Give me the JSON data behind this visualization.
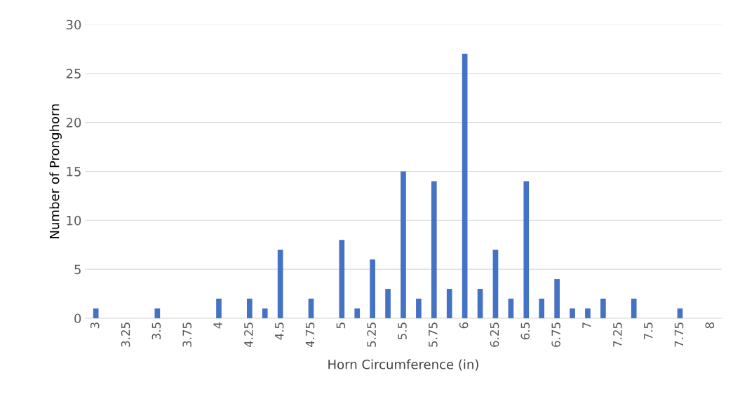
{
  "chart_data": {
    "type": "bar",
    "xlabel": "Horn Circumference (in)",
    "ylabel": "Number of Pronghorn",
    "categories": [
      "3",
      null,
      "3.25",
      null,
      "3.5",
      null,
      "3.75",
      null,
      "4",
      null,
      "4.25",
      null,
      "4.5",
      null,
      "4.75",
      null,
      "5",
      null,
      "5.25",
      null,
      "5.5",
      null,
      "5.75",
      null,
      "6",
      null,
      "6.25",
      null,
      "6.5",
      null,
      "6.75",
      null,
      "7",
      null,
      "7.25",
      null,
      "7.5",
      null,
      "7.75",
      null,
      "8"
    ],
    "values": [
      1,
      0,
      0,
      0,
      1,
      0,
      0,
      0,
      2,
      0,
      2,
      1,
      7,
      0,
      2,
      0,
      8,
      1,
      6,
      3,
      15,
      2,
      14,
      3,
      27,
      3,
      7,
      2,
      14,
      2,
      4,
      1,
      1,
      2,
      0,
      2,
      0,
      0,
      1,
      0,
      0
    ],
    "color": "#4472c4",
    "ylim": [
      0,
      30
    ],
    "yticks": [
      0,
      5,
      10,
      15,
      20,
      25,
      30
    ],
    "grid": "y",
    "legend": false
  }
}
